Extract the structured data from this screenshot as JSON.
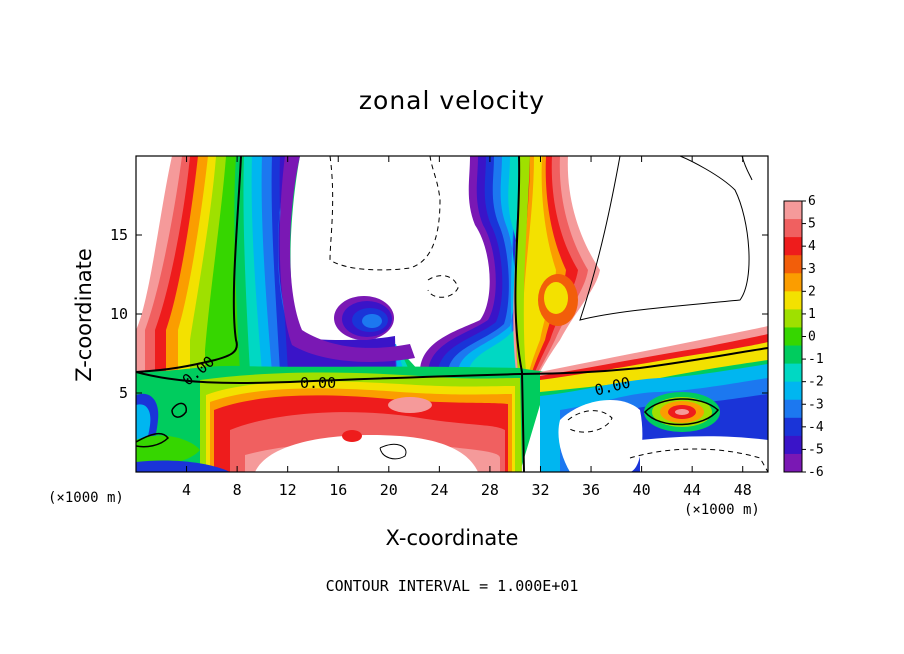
{
  "chart_data": {
    "type": "heatmap",
    "title": "zonal velocity",
    "xlabel": "X-coordinate",
    "ylabel": "Z-coordinate",
    "x_unit": "(×1000 m)",
    "footnote": "CONTOUR INTERVAL = 1.000E+01",
    "xlim": [
      0,
      50
    ],
    "ylim": [
      0,
      20
    ],
    "x_ticks": [
      4,
      8,
      12,
      16,
      20,
      24,
      28,
      32,
      36,
      40,
      44,
      48
    ],
    "y_ticks": [
      5,
      10,
      15
    ],
    "contour_labels": [
      "0.00",
      "0.00",
      "0.00"
    ],
    "colorbar": {
      "ticks": [
        6,
        5,
        4,
        3,
        2,
        1,
        0,
        -1,
        -2,
        -3,
        -4,
        -5,
        -6
      ],
      "colors": [
        "#f59a9a",
        "#f06060",
        "#ee1c1c",
        "#f25e0a",
        "#fb9d00",
        "#f3e100",
        "#9fe000",
        "#36d600",
        "#00cc5e",
        "#00d8c3",
        "#00b6f0",
        "#1c78f0",
        "#1a34d8",
        "#3a14c8",
        "#7a18b4"
      ]
    },
    "field_description_regions": [
      {
        "kind": "band",
        "value": "positive",
        "x": [
          1,
          8
        ],
        "z": [
          0,
          20
        ]
      },
      {
        "kind": "band",
        "value": "negative",
        "x": [
          8,
          14
        ],
        "z": [
          0,
          20
        ]
      },
      {
        "kind": "blob",
        "value": "negative",
        "x": [
          17,
          21
        ],
        "z": [
          9,
          11
        ]
      },
      {
        "kind": "band",
        "value": "negative",
        "x": [
          26,
          30
        ],
        "z": [
          6,
          20
        ]
      },
      {
        "kind": "band",
        "value": "positive",
        "x": [
          30,
          35
        ],
        "z": [
          5,
          20
        ]
      },
      {
        "kind": "band",
        "value": "positive",
        "x": [
          6,
          30
        ],
        "z": [
          3,
          6
        ]
      },
      {
        "kind": "blob",
        "value": "positive",
        "x": [
          41,
          46
        ],
        "z": [
          3,
          5
        ]
      }
    ]
  }
}
